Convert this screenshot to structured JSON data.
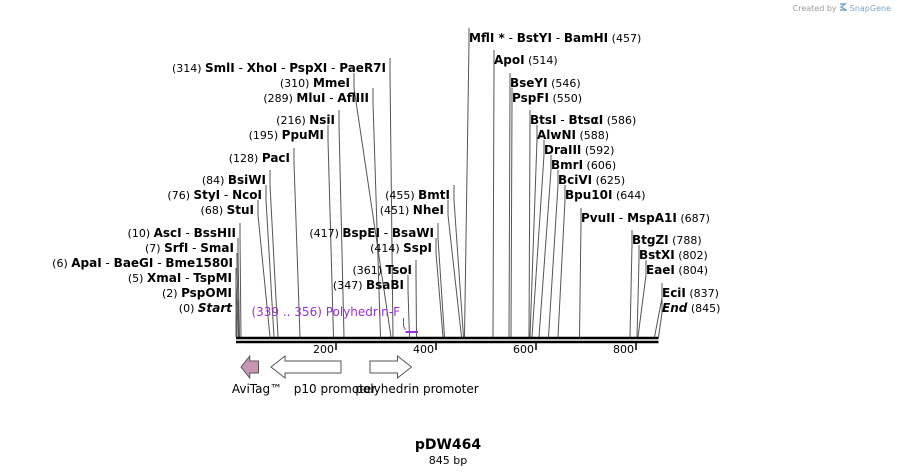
{
  "credit": {
    "prefix": "Created by",
    "brand": "SnapGene"
  },
  "plasmid": {
    "name": "pDW464",
    "length_label": "845 bp",
    "length": 845
  },
  "sites_left": [
    {
      "pos": 314,
      "pos_label": "(314)",
      "names": [
        "SmlI",
        "XhoI",
        "PspXI",
        "PaeR7I"
      ]
    },
    {
      "pos": 310,
      "pos_label": "(310)",
      "names": [
        "MmeI"
      ]
    },
    {
      "pos": 289,
      "pos_label": "(289)",
      "names": [
        "MluI",
        "AflIII"
      ]
    },
    {
      "pos": 216,
      "pos_label": "(216)",
      "names": [
        "NsiI"
      ]
    },
    {
      "pos": 195,
      "pos_label": "(195)",
      "names": [
        "PpuMI"
      ]
    },
    {
      "pos": 128,
      "pos_label": "(128)",
      "names": [
        "PacI"
      ]
    },
    {
      "pos": 84,
      "pos_label": "(84)",
      "names": [
        "BsiWI"
      ]
    },
    {
      "pos": 76,
      "pos_label": "(76)",
      "names": [
        "StyI",
        "NcoI"
      ]
    },
    {
      "pos": 68,
      "pos_label": "(68)",
      "names": [
        "StuI"
      ]
    },
    {
      "pos": 10,
      "pos_label": "(10)",
      "names": [
        "AscI",
        "BssHII"
      ]
    },
    {
      "pos": 7,
      "pos_label": "(7)",
      "names": [
        "SrfI",
        "SmaI"
      ]
    },
    {
      "pos": 6,
      "pos_label": "(6)",
      "names": [
        "ApaI",
        "BaeGI",
        "Bme1580I"
      ]
    },
    {
      "pos": 5,
      "pos_label": "(5)",
      "names": [
        "XmaI",
        "TspMI"
      ]
    },
    {
      "pos": 2,
      "pos_label": "(2)",
      "names": [
        "PspOMI"
      ]
    },
    {
      "pos": 0,
      "pos_label": "(0)",
      "names": [
        "Start"
      ],
      "italic": true
    }
  ],
  "sites_right": [
    {
      "pos": 457,
      "pos_label": "(457)",
      "names": [
        "MflI *",
        "BstYI",
        "BamHI"
      ]
    },
    {
      "pos": 514,
      "pos_label": "(514)",
      "names": [
        "ApoI"
      ]
    },
    {
      "pos": 546,
      "pos_label": "(546)",
      "names": [
        "BseYI"
      ]
    },
    {
      "pos": 550,
      "pos_label": "(550)",
      "names": [
        "PspFI"
      ]
    },
    {
      "pos": 586,
      "pos_label": "(586)",
      "names": [
        "BtsI",
        "BtsαI"
      ]
    },
    {
      "pos": 588,
      "pos_label": "(588)",
      "names": [
        "AlwNI"
      ]
    },
    {
      "pos": 592,
      "pos_label": "(592)",
      "names": [
        "DraIII"
      ]
    },
    {
      "pos": 606,
      "pos_label": "(606)",
      "names": [
        "BmrI"
      ]
    },
    {
      "pos": 625,
      "pos_label": "(625)",
      "names": [
        "BciVI"
      ]
    },
    {
      "pos": 644,
      "pos_label": "(644)",
      "names": [
        "Bpu10I"
      ]
    },
    {
      "pos": 687,
      "pos_label": "(687)",
      "names": [
        "PvuII",
        "MspA1I"
      ]
    },
    {
      "pos": 788,
      "pos_label": "(788)",
      "names": [
        "BtgZI"
      ]
    },
    {
      "pos": 802,
      "pos_label": "(802)",
      "names": [
        "BstXI"
      ]
    },
    {
      "pos": 804,
      "pos_label": "(804)",
      "names": [
        "EaeI"
      ]
    },
    {
      "pos": 837,
      "pos_label": "(837)",
      "names": [
        "EciI"
      ]
    },
    {
      "pos": 845,
      "pos_label": "(845)",
      "names": [
        "End"
      ],
      "italic": true
    }
  ],
  "sites_mid": [
    {
      "pos": 455,
      "pos_label": "(455)",
      "names": [
        "BmtI"
      ]
    },
    {
      "pos": 451,
      "pos_label": "(451)",
      "names": [
        "NheI"
      ]
    },
    {
      "pos": 417,
      "pos_label": "(417)",
      "names": [
        "BspEI",
        "BsaWI"
      ]
    },
    {
      "pos": 414,
      "pos_label": "(414)",
      "names": [
        "SspI"
      ]
    },
    {
      "pos": 361,
      "pos_label": "(361)",
      "names": [
        "TsoI"
      ]
    },
    {
      "pos": 347,
      "pos_label": "(347)",
      "names": [
        "BsaBI"
      ]
    }
  ],
  "primer": {
    "range_label": "(339 .. 356)",
    "name": "Polyhedrin-F",
    "start": 339,
    "end": 356,
    "color": "#9b30d9"
  },
  "ruler": {
    "ticks": [
      200,
      400,
      600,
      800
    ]
  },
  "features": [
    {
      "name": "AviTag™",
      "start": 10,
      "end": 45,
      "direction": "reverse",
      "fill": "#c896b4"
    },
    {
      "name": "p10 promoter",
      "start": 70,
      "end": 210,
      "direction": "reverse",
      "fill": "#ffffff"
    },
    {
      "name": "polyhedrin promoter",
      "start": 268,
      "end": 351,
      "direction": "forward",
      "fill": "#ffffff"
    }
  ]
}
